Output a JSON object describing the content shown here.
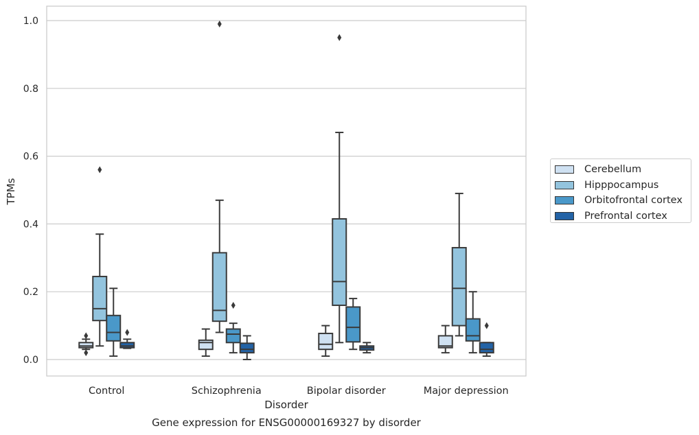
{
  "chart_data": {
    "type": "box",
    "title": "",
    "caption": "Gene expression for ENSG00000169327 by disorder",
    "xlabel": "Disorder",
    "ylabel": "TPMs",
    "ylim": [
      -0.048,
      1.04
    ],
    "yticks": [
      0.0,
      0.2,
      0.4,
      0.6,
      0.8,
      1.0
    ],
    "ytick_labels": [
      "0.0",
      "0.2",
      "0.4",
      "0.6",
      "0.8",
      "1.0"
    ],
    "grid": true,
    "legend_position": "outside-right",
    "categories": [
      "Control",
      "Schizophrenia",
      "Bipolar disorder",
      "Major depression"
    ],
    "series": [
      {
        "name": "Cerebellum",
        "color": "#cfe1f2",
        "boxes": [
          {
            "whisker_low": 0.03,
            "q1": 0.035,
            "median": 0.04,
            "q3": 0.05,
            "whisker_high": 0.06,
            "outliers": [
              0.07,
              0.02
            ]
          },
          {
            "whisker_low": 0.01,
            "q1": 0.03,
            "median": 0.05,
            "q3": 0.057,
            "whisker_high": 0.09,
            "outliers": []
          },
          {
            "whisker_low": 0.01,
            "q1": 0.03,
            "median": 0.045,
            "q3": 0.077,
            "whisker_high": 0.1,
            "outliers": []
          },
          {
            "whisker_low": 0.02,
            "q1": 0.035,
            "median": 0.04,
            "q3": 0.07,
            "whisker_high": 0.1,
            "outliers": []
          }
        ]
      },
      {
        "name": "Hipppocampus",
        "color": "#93c4de",
        "boxes": [
          {
            "whisker_low": 0.04,
            "q1": 0.115,
            "median": 0.15,
            "q3": 0.245,
            "whisker_high": 0.37,
            "outliers": [
              0.56
            ]
          },
          {
            "whisker_low": 0.08,
            "q1": 0.113,
            "median": 0.145,
            "q3": 0.315,
            "whisker_high": 0.47,
            "outliers": [
              0.99
            ]
          },
          {
            "whisker_low": 0.05,
            "q1": 0.16,
            "median": 0.23,
            "q3": 0.415,
            "whisker_high": 0.67,
            "outliers": [
              0.95
            ]
          },
          {
            "whisker_low": 0.07,
            "q1": 0.1,
            "median": 0.21,
            "q3": 0.33,
            "whisker_high": 0.49,
            "outliers": []
          }
        ]
      },
      {
        "name": "Orbitofrontal cortex",
        "color": "#4a98c9",
        "boxes": [
          {
            "whisker_low": 0.01,
            "q1": 0.055,
            "median": 0.08,
            "q3": 0.13,
            "whisker_high": 0.21,
            "outliers": []
          },
          {
            "whisker_low": 0.02,
            "q1": 0.05,
            "median": 0.075,
            "q3": 0.09,
            "whisker_high": 0.107,
            "outliers": [
              0.16
            ]
          },
          {
            "whisker_low": 0.03,
            "q1": 0.052,
            "median": 0.095,
            "q3": 0.155,
            "whisker_high": 0.18,
            "outliers": []
          },
          {
            "whisker_low": 0.02,
            "q1": 0.055,
            "median": 0.07,
            "q3": 0.12,
            "whisker_high": 0.2,
            "outliers": []
          }
        ]
      },
      {
        "name": "Prefrontal cortex",
        "color": "#2363a6",
        "boxes": [
          {
            "whisker_low": 0.033,
            "q1": 0.035,
            "median": 0.04,
            "q3": 0.05,
            "whisker_high": 0.06,
            "outliers": [
              0.08
            ]
          },
          {
            "whisker_low": 0.0,
            "q1": 0.02,
            "median": 0.03,
            "q3": 0.048,
            "whisker_high": 0.07,
            "outliers": []
          },
          {
            "whisker_low": 0.02,
            "q1": 0.028,
            "median": 0.035,
            "q3": 0.04,
            "whisker_high": 0.05,
            "outliers": []
          },
          {
            "whisker_low": 0.01,
            "q1": 0.02,
            "median": 0.03,
            "q3": 0.05,
            "whisker_high": 0.05,
            "outliers": [
              0.1
            ]
          }
        ]
      }
    ]
  }
}
